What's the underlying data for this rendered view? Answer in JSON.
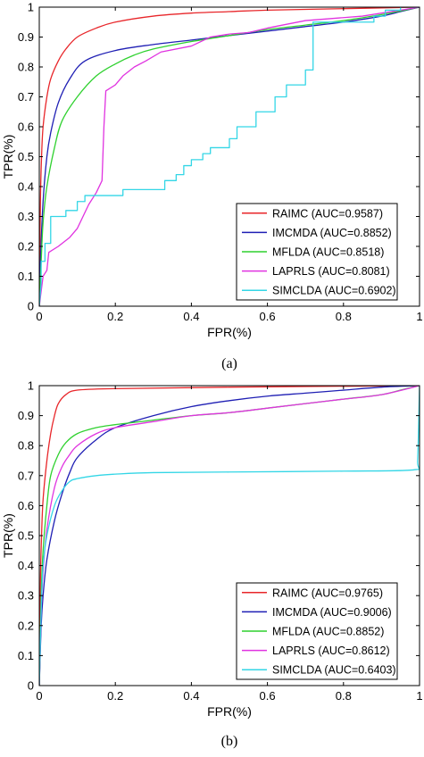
{
  "chart_data": [
    {
      "type": "line",
      "caption": "(a)",
      "xlabel": "FPR(%)",
      "ylabel": "TPR(%)",
      "xlim": [
        0,
        1
      ],
      "ylim": [
        0,
        1
      ],
      "xticks": [
        "0",
        "0.2",
        "0.4",
        "0.6",
        "0.8",
        "1"
      ],
      "yticks": [
        "0",
        "0.1",
        "0.2",
        "0.3",
        "0.4",
        "0.5",
        "0.6",
        "0.7",
        "0.8",
        "0.9",
        "1"
      ],
      "grid": false,
      "legend_position": "bottom-right",
      "series": [
        {
          "name": "RAIMC (AUC=0.9587)",
          "color": "#e8262a",
          "interp": "curve",
          "points": [
            [
              0,
              0
            ],
            [
              0.003,
              0.35
            ],
            [
              0.006,
              0.5
            ],
            [
              0.01,
              0.6
            ],
            [
              0.02,
              0.7
            ],
            [
              0.03,
              0.76
            ],
            [
              0.05,
              0.82
            ],
            [
              0.07,
              0.86
            ],
            [
              0.1,
              0.9
            ],
            [
              0.15,
              0.93
            ],
            [
              0.2,
              0.95
            ],
            [
              0.3,
              0.97
            ],
            [
              0.4,
              0.98
            ],
            [
              0.5,
              0.985
            ],
            [
              0.6,
              0.99
            ],
            [
              0.8,
              0.995
            ],
            [
              1,
              1
            ]
          ]
        },
        {
          "name": "IMCMDA (AUC=0.8852)",
          "color": "#1f1fb4",
          "interp": "curve",
          "points": [
            [
              0,
              0
            ],
            [
              0.003,
              0.15
            ],
            [
              0.01,
              0.35
            ],
            [
              0.02,
              0.5
            ],
            [
              0.03,
              0.58
            ],
            [
              0.05,
              0.68
            ],
            [
              0.08,
              0.76
            ],
            [
              0.12,
              0.82
            ],
            [
              0.2,
              0.855
            ],
            [
              0.3,
              0.875
            ],
            [
              0.4,
              0.89
            ],
            [
              0.5,
              0.905
            ],
            [
              0.6,
              0.92
            ],
            [
              0.7,
              0.935
            ],
            [
              0.8,
              0.95
            ],
            [
              0.9,
              0.97
            ],
            [
              0.95,
              0.985
            ],
            [
              1,
              1
            ]
          ]
        },
        {
          "name": "MFLDA (AUC=0.8518)",
          "color": "#2fd12f",
          "interp": "curve",
          "points": [
            [
              0,
              0
            ],
            [
              0.005,
              0.15
            ],
            [
              0.01,
              0.28
            ],
            [
              0.02,
              0.4
            ],
            [
              0.04,
              0.53
            ],
            [
              0.06,
              0.62
            ],
            [
              0.1,
              0.7
            ],
            [
              0.15,
              0.77
            ],
            [
              0.2,
              0.81
            ],
            [
              0.25,
              0.84
            ],
            [
              0.3,
              0.86
            ],
            [
              0.4,
              0.885
            ],
            [
              0.5,
              0.905
            ],
            [
              0.6,
              0.925
            ],
            [
              0.7,
              0.94
            ],
            [
              0.8,
              0.955
            ],
            [
              0.9,
              0.975
            ],
            [
              1,
              1
            ]
          ]
        },
        {
          "name": "LAPRLS (AUC=0.8081)",
          "color": "#e033e0",
          "interp": "linear",
          "points": [
            [
              0,
              0
            ],
            [
              0.005,
              0.05
            ],
            [
              0.01,
              0.1
            ],
            [
              0.02,
              0.12
            ],
            [
              0.025,
              0.18
            ],
            [
              0.05,
              0.2
            ],
            [
              0.08,
              0.23
            ],
            [
              0.1,
              0.26
            ],
            [
              0.13,
              0.34
            ],
            [
              0.15,
              0.38
            ],
            [
              0.165,
              0.42
            ],
            [
              0.17,
              0.6
            ],
            [
              0.175,
              0.72
            ],
            [
              0.2,
              0.74
            ],
            [
              0.22,
              0.77
            ],
            [
              0.25,
              0.8
            ],
            [
              0.28,
              0.82
            ],
            [
              0.32,
              0.85
            ],
            [
              0.4,
              0.87
            ],
            [
              0.45,
              0.9
            ],
            [
              0.5,
              0.91
            ],
            [
              0.55,
              0.915
            ],
            [
              0.6,
              0.93
            ],
            [
              0.7,
              0.955
            ],
            [
              0.8,
              0.965
            ],
            [
              0.85,
              0.97
            ],
            [
              0.9,
              0.98
            ],
            [
              0.95,
              0.99
            ],
            [
              1,
              1
            ]
          ]
        },
        {
          "name": "SIMCLDA (AUC=0.6902)",
          "color": "#33d6e6",
          "interp": "step",
          "points": [
            [
              0,
              0
            ],
            [
              0.005,
              0.08
            ],
            [
              0.005,
              0.15
            ],
            [
              0.015,
              0.15
            ],
            [
              0.015,
              0.21
            ],
            [
              0.03,
              0.21
            ],
            [
              0.03,
              0.3
            ],
            [
              0.07,
              0.3
            ],
            [
              0.07,
              0.32
            ],
            [
              0.1,
              0.32
            ],
            [
              0.1,
              0.35
            ],
            [
              0.12,
              0.35
            ],
            [
              0.12,
              0.37
            ],
            [
              0.22,
              0.37
            ],
            [
              0.22,
              0.39
            ],
            [
              0.33,
              0.39
            ],
            [
              0.33,
              0.42
            ],
            [
              0.36,
              0.42
            ],
            [
              0.36,
              0.44
            ],
            [
              0.38,
              0.44
            ],
            [
              0.38,
              0.47
            ],
            [
              0.4,
              0.47
            ],
            [
              0.4,
              0.49
            ],
            [
              0.43,
              0.49
            ],
            [
              0.43,
              0.51
            ],
            [
              0.45,
              0.51
            ],
            [
              0.45,
              0.53
            ],
            [
              0.5,
              0.53
            ],
            [
              0.5,
              0.56
            ],
            [
              0.52,
              0.56
            ],
            [
              0.52,
              0.6
            ],
            [
              0.57,
              0.6
            ],
            [
              0.57,
              0.65
            ],
            [
              0.62,
              0.65
            ],
            [
              0.62,
              0.7
            ],
            [
              0.65,
              0.7
            ],
            [
              0.65,
              0.74
            ],
            [
              0.7,
              0.74
            ],
            [
              0.7,
              0.79
            ],
            [
              0.72,
              0.79
            ],
            [
              0.72,
              0.95
            ],
            [
              0.88,
              0.95
            ],
            [
              0.88,
              0.97
            ],
            [
              0.91,
              0.97
            ],
            [
              0.91,
              0.99
            ],
            [
              0.95,
              0.99
            ],
            [
              0.95,
              1
            ],
            [
              1,
              1
            ]
          ]
        }
      ]
    },
    {
      "type": "line",
      "caption": "(b)",
      "xlabel": "FPR(%)",
      "ylabel": "TPR(%)",
      "xlim": [
        0,
        1
      ],
      "ylim": [
        0,
        1
      ],
      "xticks": [
        "0",
        "0.2",
        "0.4",
        "0.6",
        "0.8",
        "1"
      ],
      "yticks": [
        "0",
        "0.1",
        "0.2",
        "0.3",
        "0.4",
        "0.5",
        "0.6",
        "0.7",
        "0.8",
        "0.9",
        "1"
      ],
      "grid": false,
      "legend_position": "bottom-right",
      "series": [
        {
          "name": "RAIMC (AUC=0.9765)",
          "color": "#e8262a",
          "interp": "curve",
          "points": [
            [
              0,
              0
            ],
            [
              0.003,
              0.35
            ],
            [
              0.006,
              0.5
            ],
            [
              0.01,
              0.62
            ],
            [
              0.02,
              0.75
            ],
            [
              0.03,
              0.84
            ],
            [
              0.04,
              0.9
            ],
            [
              0.05,
              0.94
            ],
            [
              0.07,
              0.97
            ],
            [
              0.1,
              0.985
            ],
            [
              0.2,
              0.99
            ],
            [
              0.5,
              0.995
            ],
            [
              1,
              1
            ]
          ]
        },
        {
          "name": "IMCMDA (AUC=0.9006)",
          "color": "#1f1fb4",
          "interp": "curve",
          "points": [
            [
              0,
              0
            ],
            [
              0.005,
              0.2
            ],
            [
              0.01,
              0.3
            ],
            [
              0.02,
              0.42
            ],
            [
              0.04,
              0.55
            ],
            [
              0.06,
              0.64
            ],
            [
              0.08,
              0.71
            ],
            [
              0.1,
              0.76
            ],
            [
              0.15,
              0.82
            ],
            [
              0.2,
              0.86
            ],
            [
              0.3,
              0.9
            ],
            [
              0.4,
              0.93
            ],
            [
              0.5,
              0.95
            ],
            [
              0.6,
              0.965
            ],
            [
              0.7,
              0.975
            ],
            [
              0.8,
              0.985
            ],
            [
              0.9,
              0.995
            ],
            [
              1,
              1
            ]
          ]
        },
        {
          "name": "MFLDA (AUC=0.8852)",
          "color": "#2fd12f",
          "interp": "curve",
          "points": [
            [
              0,
              0
            ],
            [
              0.005,
              0.3
            ],
            [
              0.01,
              0.45
            ],
            [
              0.02,
              0.6
            ],
            [
              0.03,
              0.7
            ],
            [
              0.05,
              0.77
            ],
            [
              0.07,
              0.81
            ],
            [
              0.1,
              0.84
            ],
            [
              0.15,
              0.86
            ],
            [
              0.2,
              0.87
            ],
            [
              0.3,
              0.885
            ],
            [
              0.4,
              0.9
            ],
            [
              0.5,
              0.91
            ],
            [
              0.6,
              0.925
            ],
            [
              0.7,
              0.94
            ],
            [
              0.8,
              0.955
            ],
            [
              0.9,
              0.97
            ],
            [
              0.95,
              0.985
            ],
            [
              1,
              1
            ]
          ]
        },
        {
          "name": "LAPRLS (AUC=0.8612)",
          "color": "#e033e0",
          "interp": "curve",
          "points": [
            [
              0,
              0
            ],
            [
              0.005,
              0.25
            ],
            [
              0.01,
              0.38
            ],
            [
              0.02,
              0.52
            ],
            [
              0.04,
              0.66
            ],
            [
              0.06,
              0.73
            ],
            [
              0.08,
              0.77
            ],
            [
              0.1,
              0.8
            ],
            [
              0.15,
              0.84
            ],
            [
              0.2,
              0.86
            ],
            [
              0.3,
              0.88
            ],
            [
              0.4,
              0.9
            ],
            [
              0.5,
              0.91
            ],
            [
              0.6,
              0.925
            ],
            [
              0.7,
              0.94
            ],
            [
              0.8,
              0.955
            ],
            [
              0.9,
              0.97
            ],
            [
              1,
              1
            ]
          ]
        },
        {
          "name": "SIMCLDA (AUC=0.6403)",
          "color": "#33d6e6",
          "interp": "curve",
          "points": [
            [
              0,
              0
            ],
            [
              0.005,
              0.25
            ],
            [
              0.01,
              0.4
            ],
            [
              0.02,
              0.5
            ],
            [
              0.04,
              0.6
            ],
            [
              0.06,
              0.65
            ],
            [
              0.08,
              0.68
            ],
            [
              0.1,
              0.69
            ],
            [
              0.15,
              0.7
            ],
            [
              0.2,
              0.705
            ],
            [
              0.3,
              0.71
            ],
            [
              0.5,
              0.712
            ],
            [
              0.8,
              0.715
            ],
            [
              0.99,
              0.72
            ],
            [
              0.995,
              0.75
            ],
            [
              1,
              1
            ]
          ]
        }
      ]
    }
  ]
}
